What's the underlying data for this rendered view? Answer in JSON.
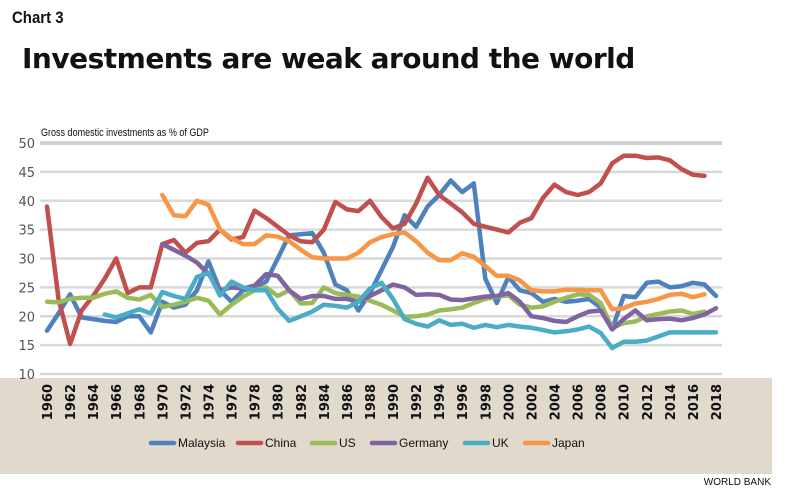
{
  "header": {
    "chart_label": "Chart 3",
    "title": "Investments are weak around the world",
    "subtitle": "Gross domestic investments as % of GDP",
    "source": "WORLD BANK"
  },
  "chart_data": {
    "type": "line",
    "title": "Investments are weak around the world",
    "ylabel": "Gross domestic investments as % of GDP",
    "xlabel": "",
    "ylim": [
      10,
      50
    ],
    "yticks": [
      10,
      15,
      20,
      25,
      30,
      35,
      40,
      45,
      50
    ],
    "xlim": [
      1960,
      2018
    ],
    "xticks": [
      "1960",
      "1962",
      "1964",
      "1966",
      "1968",
      "1970",
      "1972",
      "1974",
      "1976",
      "1978",
      "1980",
      "1982",
      "1984",
      "1986",
      "1988",
      "1990",
      "1992",
      "1994",
      "1996",
      "1998",
      "2000",
      "2002",
      "2004",
      "2006",
      "2008",
      "2010",
      "2012",
      "2014",
      "2016",
      "2018"
    ],
    "grid": true,
    "legend_position": "bottom",
    "series": [
      {
        "name": "Malaysia",
        "color": "#4f81bd",
        "start": 1960,
        "values": [
          17.5,
          20.5,
          23.8,
          19.8,
          19.5,
          19.2,
          19.0,
          20.0,
          20.0,
          17.2,
          22.5,
          21.5,
          22.0,
          24.5,
          29.5,
          24.5,
          22.5,
          24.5,
          25.0,
          26.0,
          30.0,
          34.0,
          34.2,
          34.4,
          31.0,
          25.5,
          24.5,
          21.0,
          24.0,
          28.0,
          32.0,
          37.5,
          35.5,
          39.0,
          41.0,
          43.5,
          41.5,
          43.0,
          26.5,
          22.3,
          26.8,
          24.5,
          24.0,
          22.5,
          23.0,
          22.5,
          22.7,
          23.0,
          21.5,
          17.8,
          23.5,
          23.3,
          25.8,
          26.0,
          25.0,
          25.2,
          25.8,
          25.5,
          23.5
        ]
      },
      {
        "name": "China",
        "color": "#c0504d",
        "start": 1960,
        "values": [
          39.0,
          23.0,
          15.2,
          21.0,
          23.5,
          26.5,
          30.0,
          24.0,
          25.0,
          25.0,
          32.5,
          33.2,
          31.0,
          32.7,
          33.0,
          35.0,
          33.3,
          33.7,
          38.3,
          37.0,
          35.5,
          34.0,
          33.0,
          32.8,
          35.0,
          39.8,
          38.5,
          38.2,
          40.0,
          37.2,
          35.2,
          36.0,
          39.5,
          44.0,
          41.0,
          39.5,
          38.0,
          36.0,
          35.5,
          35.0,
          34.5,
          36.2,
          37.0,
          40.5,
          42.8,
          41.5,
          41.0,
          41.5,
          43.0,
          46.5,
          47.8,
          47.8,
          47.4,
          47.5,
          47.0,
          45.5,
          44.5,
          44.3
        ]
      },
      {
        "name": "US",
        "color": "#9bbb59",
        "start": 1960,
        "values": [
          22.5,
          22.4,
          23.0,
          23.2,
          23.2,
          23.9,
          24.3,
          23.2,
          22.9,
          23.7,
          21.6,
          22.0,
          22.5,
          23.2,
          22.7,
          20.3,
          22.0,
          23.4,
          24.5,
          25.0,
          23.5,
          24.5,
          22.2,
          22.3,
          25.0,
          24.0,
          23.7,
          23.4,
          22.7,
          22.0,
          21.0,
          19.9,
          20.0,
          20.3,
          21.0,
          21.2,
          21.5,
          22.3,
          23.0,
          23.4,
          23.6,
          22.0,
          21.5,
          21.7,
          22.5,
          23.2,
          23.8,
          23.7,
          22.3,
          18.0,
          18.8,
          19.1,
          20.0,
          20.4,
          20.8,
          21.0,
          20.4,
          20.8
        ]
      },
      {
        "name": "Germany",
        "color": "#8064a2",
        "start": 1970,
        "values": [
          32.5,
          31.5,
          30.5,
          29.3,
          27.3,
          24.5,
          25.0,
          24.8,
          25.3,
          27.3,
          27.0,
          24.5,
          23.0,
          23.5,
          23.5,
          23.0,
          23.0,
          22.5,
          23.5,
          24.5,
          25.5,
          25.0,
          23.7,
          23.8,
          23.7,
          22.9,
          22.8,
          23.1,
          23.4,
          23.5,
          24.0,
          22.5,
          20.0,
          19.7,
          19.2,
          19.0,
          20.0,
          20.8,
          21.0,
          17.7,
          19.5,
          21.0,
          19.3,
          19.5,
          19.6,
          19.3,
          19.7,
          20.3,
          21.4
        ]
      },
      {
        "name": "UK",
        "color": "#4bacc6",
        "start": 1965,
        "values": [
          20.3,
          19.8,
          20.5,
          21.2,
          20.5,
          24.2,
          23.5,
          23.0,
          26.8,
          27.5,
          23.6,
          26.0,
          25.0,
          24.5,
          24.5,
          21.3,
          19.2,
          20.0,
          20.8,
          22.0,
          21.8,
          21.5,
          22.5,
          24.8,
          25.8,
          23.0,
          19.5,
          18.7,
          18.2,
          19.3,
          18.5,
          18.7,
          18.0,
          18.5,
          18.1,
          18.5,
          18.2,
          18.0,
          17.6,
          17.2,
          17.4,
          17.7,
          18.2,
          17.1,
          14.5,
          15.6,
          15.6,
          15.8,
          16.5,
          17.2,
          17.2,
          17.2,
          17.2,
          17.2
        ]
      },
      {
        "name": "Japan",
        "color": "#f79646",
        "start": 1970,
        "values": [
          41.0,
          37.5,
          37.3,
          40.0,
          39.3,
          35.0,
          33.5,
          32.5,
          32.5,
          34.0,
          33.8,
          33.0,
          31.5,
          30.2,
          30.0,
          30.0,
          30.0,
          31.0,
          32.8,
          33.7,
          34.2,
          34.5,
          33.0,
          31.0,
          29.7,
          29.7,
          30.9,
          30.3,
          28.7,
          27.0,
          27.0,
          26.2,
          24.5,
          24.3,
          24.3,
          24.6,
          24.6,
          24.5,
          24.5,
          21.2,
          21.4,
          22.2,
          22.5,
          23.0,
          23.7,
          23.9,
          23.3,
          23.8
        ]
      }
    ]
  }
}
